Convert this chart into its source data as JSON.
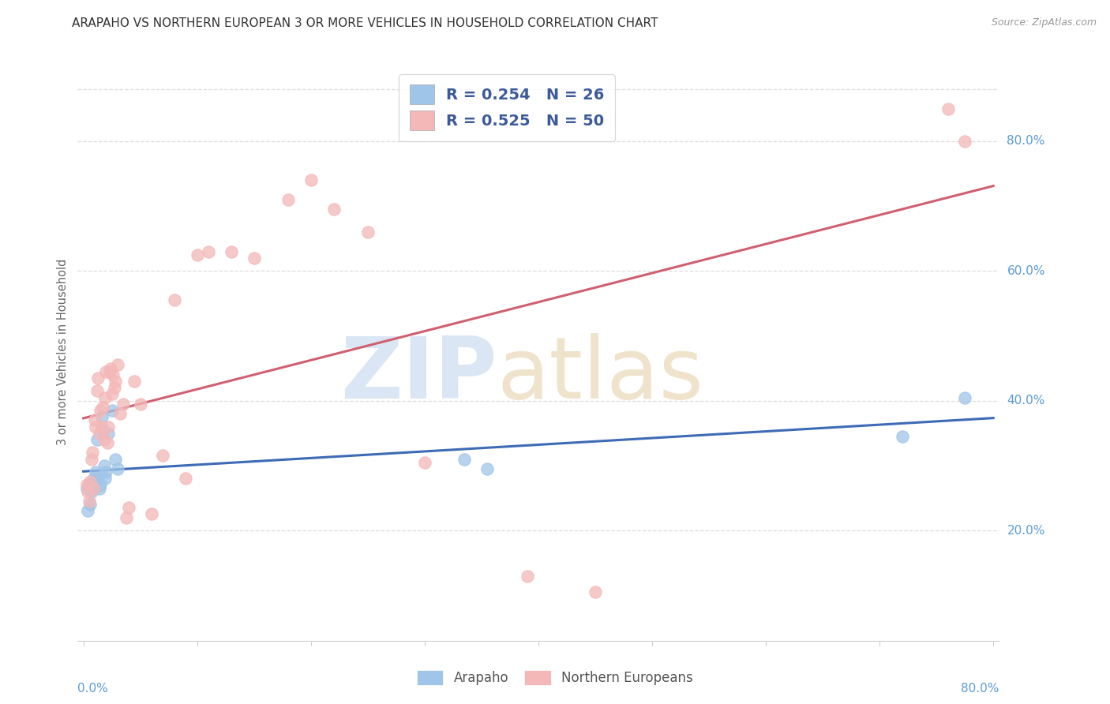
{
  "title": "ARAPAHO VS NORTHERN EUROPEAN 3 OR MORE VEHICLES IN HOUSEHOLD CORRELATION CHART",
  "source": "Source: ZipAtlas.com",
  "ylabel": "3 or more Vehicles in Household",
  "arapaho_color": "#9fc5e8",
  "northern_color": "#f4b8b8",
  "arapaho_line_color": "#3d6bb5",
  "northern_line_color": "#d06070",
  "arapaho_x": [
    0.003,
    0.004,
    0.005,
    0.006,
    0.007,
    0.008,
    0.009,
    0.01,
    0.011,
    0.012,
    0.013,
    0.014,
    0.015,
    0.016,
    0.017,
    0.018,
    0.019,
    0.02,
    0.022,
    0.025,
    0.028,
    0.03,
    0.335,
    0.355,
    0.72,
    0.775
  ],
  "arapaho_y": [
    0.265,
    0.23,
    0.27,
    0.24,
    0.26,
    0.27,
    0.28,
    0.265,
    0.29,
    0.34,
    0.28,
    0.265,
    0.27,
    0.375,
    0.355,
    0.3,
    0.28,
    0.29,
    0.35,
    0.385,
    0.31,
    0.295,
    0.31,
    0.295,
    0.345,
    0.405
  ],
  "northern_x": [
    0.003,
    0.004,
    0.005,
    0.006,
    0.007,
    0.008,
    0.009,
    0.01,
    0.011,
    0.012,
    0.013,
    0.014,
    0.015,
    0.016,
    0.017,
    0.018,
    0.019,
    0.02,
    0.021,
    0.022,
    0.023,
    0.024,
    0.025,
    0.026,
    0.027,
    0.028,
    0.03,
    0.032,
    0.035,
    0.038,
    0.04,
    0.045,
    0.05,
    0.06,
    0.07,
    0.08,
    0.09,
    0.1,
    0.11,
    0.13,
    0.15,
    0.18,
    0.2,
    0.22,
    0.25,
    0.3,
    0.39,
    0.45,
    0.76,
    0.775
  ],
  "northern_y": [
    0.27,
    0.26,
    0.245,
    0.275,
    0.31,
    0.32,
    0.265,
    0.37,
    0.36,
    0.415,
    0.435,
    0.35,
    0.385,
    0.36,
    0.39,
    0.34,
    0.405,
    0.445,
    0.335,
    0.36,
    0.445,
    0.45,
    0.41,
    0.44,
    0.42,
    0.43,
    0.455,
    0.38,
    0.395,
    0.22,
    0.235,
    0.43,
    0.395,
    0.225,
    0.315,
    0.555,
    0.28,
    0.625,
    0.63,
    0.63,
    0.62,
    0.71,
    0.74,
    0.695,
    0.66,
    0.305,
    0.13,
    0.105,
    0.85,
    0.8
  ],
  "xlim_min": 0.0,
  "xlim_max": 0.8,
  "ylim_min": 0.03,
  "ylim_max": 0.92,
  "right_ytick_vals": [
    0.2,
    0.4,
    0.6,
    0.8
  ],
  "right_ytick_labels": [
    "20.0%",
    "40.0%",
    "60.0%",
    "80.0%"
  ],
  "grid_color": "#dddddd",
  "axis_label_color": "#5b9bd5",
  "legend_label_color": "#3c5a9a",
  "title_color": "#333333",
  "source_color": "#999999",
  "ylabel_color": "#666666"
}
